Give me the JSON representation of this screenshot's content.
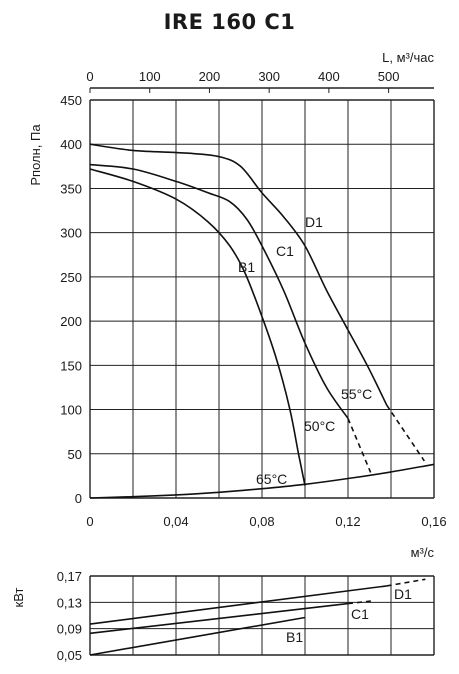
{
  "page": {
    "title": "IRE 160 C1"
  },
  "chart_data": [
    {
      "type": "line",
      "ylabel": "Pполн, Па",
      "xlabel": "м³/с",
      "x2label": "L, м³/час",
      "xlim": [
        0,
        0.16
      ],
      "ylim": [
        0,
        450
      ],
      "x2lim": [
        0,
        576
      ],
      "xticks": [
        "0",
        "0,04",
        "0,08",
        "0,12",
        "0,16"
      ],
      "yticks": [
        "0",
        "50",
        "100",
        "150",
        "200",
        "250",
        "300",
        "350",
        "400",
        "450"
      ],
      "x2ticks": [
        "0",
        "100",
        "200",
        "300",
        "400",
        "500"
      ],
      "grid": true,
      "series": [
        {
          "name": "B1",
          "style": "solid",
          "x": [
            0,
            0.02,
            0.04,
            0.055,
            0.065,
            0.072,
            0.08,
            0.087,
            0.093,
            0.097,
            0.1
          ],
          "y": [
            372,
            358,
            338,
            312,
            285,
            255,
            205,
            155,
            100,
            50,
            14
          ]
        },
        {
          "name": "C1",
          "style": "solid",
          "x": [
            0,
            0.02,
            0.04,
            0.055,
            0.065,
            0.073,
            0.08,
            0.09,
            0.1,
            0.11,
            0.12
          ],
          "y": [
            377,
            372,
            358,
            345,
            335,
            315,
            285,
            235,
            175,
            125,
            90
          ]
        },
        {
          "name": "C1",
          "style": "dashed",
          "x": [
            0.12,
            0.1305
          ],
          "y": [
            90,
            29
          ]
        },
        {
          "name": "D1",
          "style": "solid",
          "x": [
            0,
            0.02,
            0.045,
            0.06,
            0.07,
            0.08,
            0.09,
            0.1,
            0.11,
            0.12,
            0.13,
            0.138
          ],
          "y": [
            400,
            393,
            390,
            386,
            375,
            345,
            318,
            285,
            235,
            190,
            145,
            105
          ]
        },
        {
          "name": "D1",
          "style": "dashed",
          "x": [
            0.138,
            0.1555
          ],
          "y": [
            105,
            42
          ]
        },
        {
          "name": "65°C",
          "style": "solid",
          "x": [
            0,
            0.02,
            0.04,
            0.06,
            0.08,
            0.1,
            0.12,
            0.14,
            0.16
          ],
          "y": [
            0,
            1.5,
            3.5,
            6.5,
            10.5,
            15.5,
            22,
            29.5,
            38
          ]
        }
      ],
      "annotations": [
        "B1",
        "C1",
        "D1",
        "65°C",
        "50°C",
        "55°C"
      ]
    },
    {
      "type": "line",
      "ylabel": "кВт",
      "xlim": [
        0,
        0.16
      ],
      "ylim": [
        0.05,
        0.17
      ],
      "yticks": [
        "0,17",
        "0,13",
        "0,09",
        "0,05"
      ],
      "grid": true,
      "series": [
        {
          "name": "B1",
          "style": "solid",
          "x": [
            0,
            0.1
          ],
          "y": [
            0.05,
            0.107
          ]
        },
        {
          "name": "C1",
          "style": "solid",
          "x": [
            0,
            0.12
          ],
          "y": [
            0.083,
            0.128
          ]
        },
        {
          "name": "C1",
          "style": "dashed",
          "x": [
            0.12,
            0.131
          ],
          "y": [
            0.128,
            0.132
          ]
        },
        {
          "name": "D1",
          "style": "solid",
          "x": [
            0,
            0.138
          ],
          "y": [
            0.097,
            0.155
          ]
        },
        {
          "name": "D1",
          "style": "dashed",
          "x": [
            0.138,
            0.156
          ],
          "y": [
            0.155,
            0.165
          ]
        }
      ],
      "annotations": [
        "B1",
        "C1",
        "D1"
      ]
    }
  ]
}
